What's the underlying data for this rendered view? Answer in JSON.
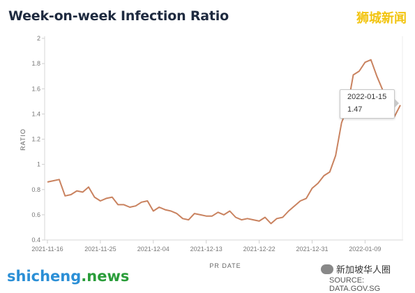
{
  "page": {
    "title": "Week-on-week Infection Ratio",
    "watermark_top": "狮城新闻",
    "watermark_left_a": "shicheng",
    "watermark_left_b": ".news",
    "wechat_label": "新加坡华人圈",
    "source": "SOURCE: DATA.GOV.SG"
  },
  "tooltip": {
    "date": "2022-01-15",
    "value": "1.47"
  },
  "chart_data": {
    "type": "line",
    "title": "Week-on-week Infection Ratio",
    "xlabel": "PR DATE",
    "ylabel": "RATIO",
    "ylim": [
      0.4,
      2
    ],
    "yticks": [
      "0.4",
      "0.6",
      "0.8",
      "1",
      "1.2",
      "1.4",
      "1.6",
      "1.8",
      "2"
    ],
    "xticks": [
      "2021-11-16",
      "2021-11-25",
      "2021-12-04",
      "2021-12-13",
      "2021-12-22",
      "2021-12-31",
      "2022-01-09"
    ],
    "grid": false,
    "line_color": "#c9825f",
    "series": [
      {
        "x": [
          "2021-11-16",
          "2021-11-17",
          "2021-11-18",
          "2021-11-19",
          "2021-11-20",
          "2021-11-21",
          "2021-11-22",
          "2021-11-23",
          "2021-11-24",
          "2021-11-25",
          "2021-11-26",
          "2021-11-27",
          "2021-11-28",
          "2021-11-29",
          "2021-11-30",
          "2021-12-01",
          "2021-12-02",
          "2021-12-03",
          "2021-12-04",
          "2021-12-05",
          "2021-12-06",
          "2021-12-07",
          "2021-12-08",
          "2021-12-09",
          "2021-12-10",
          "2021-12-11",
          "2021-12-12",
          "2021-12-13",
          "2021-12-14",
          "2021-12-15",
          "2021-12-16",
          "2021-12-17",
          "2021-12-18",
          "2021-12-19",
          "2021-12-20",
          "2021-12-21",
          "2021-12-22",
          "2021-12-23",
          "2021-12-24",
          "2021-12-25",
          "2021-12-26",
          "2021-12-27",
          "2021-12-28",
          "2021-12-29",
          "2021-12-30",
          "2021-12-31",
          "2022-01-01",
          "2022-01-02",
          "2022-01-03",
          "2022-01-04",
          "2022-01-05",
          "2022-01-06",
          "2022-01-07",
          "2022-01-08",
          "2022-01-09",
          "2022-01-10",
          "2022-01-11",
          "2022-01-12",
          "2022-01-13",
          "2022-01-14",
          "2022-01-15"
        ],
        "values": [
          0.86,
          0.87,
          0.88,
          0.75,
          0.76,
          0.79,
          0.78,
          0.82,
          0.74,
          0.71,
          0.73,
          0.74,
          0.68,
          0.68,
          0.66,
          0.67,
          0.7,
          0.71,
          0.63,
          0.66,
          0.64,
          0.63,
          0.61,
          0.57,
          0.56,
          0.61,
          0.6,
          0.59,
          0.59,
          0.62,
          0.6,
          0.63,
          0.58,
          0.56,
          0.57,
          0.56,
          0.55,
          0.58,
          0.53,
          0.57,
          0.58,
          0.63,
          0.67,
          0.71,
          0.73,
          0.81,
          0.85,
          0.91,
          0.94,
          1.07,
          1.33,
          1.45,
          1.71,
          1.74,
          1.81,
          1.83,
          1.7,
          1.59,
          1.41,
          1.38,
          1.47
        ]
      }
    ]
  }
}
